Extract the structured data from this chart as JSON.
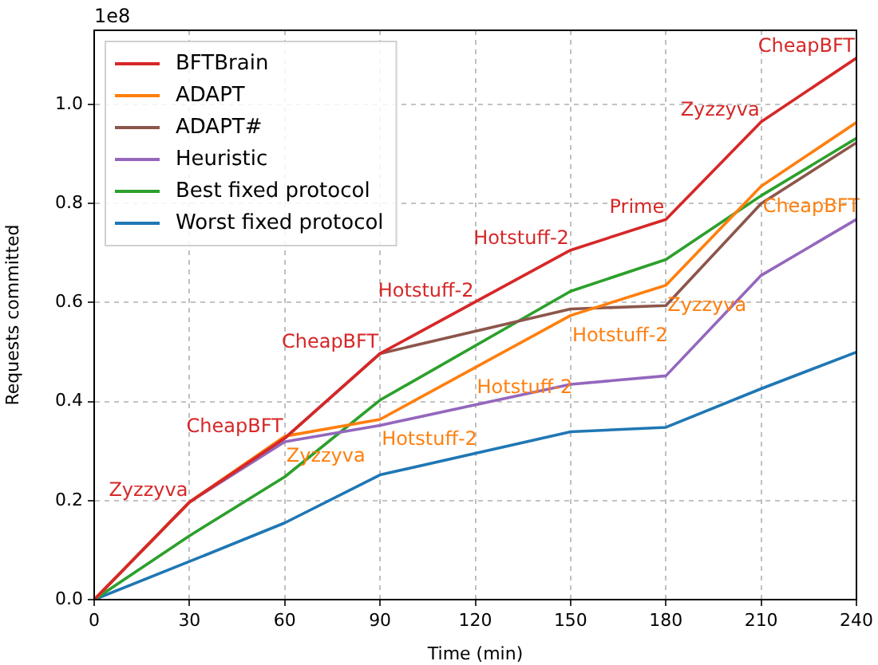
{
  "chart_data": {
    "type": "line",
    "xlabel": "Time (min)",
    "ylabel": "Requests committed",
    "x": [
      0,
      30,
      60,
      90,
      150,
      180,
      210,
      240
    ],
    "series": [
      {
        "name": "BFTBrain",
        "color": "#d62728",
        "values": [
          0,
          0.197,
          0.326,
          0.497,
          0.706,
          0.768,
          0.965,
          1.094
        ]
      },
      {
        "name": "ADAPT",
        "color": "#ff7f0e",
        "values": [
          0,
          0.197,
          0.33,
          0.364,
          0.574,
          0.635,
          0.835,
          0.964
        ]
      },
      {
        "name": "ADAPT#",
        "color": "#8c564b",
        "values": [
          0,
          0.197,
          0.326,
          0.497,
          0.587,
          0.594,
          0.8,
          0.923
        ]
      },
      {
        "name": "Heuristic",
        "color": "#9467bd",
        "values": [
          0,
          0.197,
          0.319,
          0.352,
          0.435,
          0.452,
          0.655,
          0.768
        ]
      },
      {
        "name": "Best fixed protocol",
        "color": "#2ca02c",
        "values": [
          0,
          0.129,
          0.248,
          0.403,
          0.623,
          0.687,
          0.816,
          0.932
        ]
      },
      {
        "name": "Worst fixed protocol",
        "color": "#1f77b4",
        "values": [
          0,
          0.077,
          0.155,
          0.252,
          0.339,
          0.348,
          0.426,
          0.5
        ]
      }
    ],
    "xlim": [
      0,
      240
    ],
    "xticks": [
      0,
      30,
      60,
      90,
      120,
      150,
      180,
      210,
      240
    ],
    "ylim": [
      0,
      1.15
    ],
    "yticks": [
      {
        "value": 0,
        "label": "0.0"
      },
      {
        "value": 0.2,
        "label": "0.2"
      },
      {
        "value": 0.4,
        "label": "0.4"
      },
      {
        "value": 0.6,
        "label": "0.6"
      },
      {
        "value": 0.8,
        "label": "0.8"
      },
      {
        "value": 1,
        "label": "1.0"
      }
    ],
    "grid": true,
    "legend": "top left",
    "line_style": "solid",
    "marker": "none",
    "annotations": [
      "1e8",
      {
        "text": "Zyzzyva",
        "x": 30,
        "y": 0.197
      },
      {
        "text": "CheapBFT",
        "x": 60,
        "y": 0.326
      },
      {
        "text": "CheapBFT",
        "x": 90,
        "y": 0.497
      },
      {
        "text": "Hotstuff-2",
        "x": 120,
        "y": 0.6
      },
      {
        "text": "Hotstuff-2",
        "x": 150,
        "y": 0.706
      },
      {
        "text": "Prime",
        "x": 180,
        "y": 0.768
      },
      {
        "text": "Zyzzyva",
        "x": 210,
        "y": 0.965
      },
      {
        "text": "CheapBFT",
        "x": 240,
        "y": 1.094
      },
      {
        "text": "Zyzzyva",
        "x": 60,
        "y": 0.33
      },
      {
        "text": "Hotstuff-2",
        "x": 90,
        "y": 0.364
      },
      {
        "text": "Hotstuff-2",
        "x": 120,
        "y": 0.469
      },
      {
        "text": "Hotstuff-2",
        "x": 150,
        "y": 0.574
      },
      {
        "text": "Zyzzyva",
        "x": 180,
        "y": 0.635
      },
      {
        "text": "CheapBFT",
        "x": 210,
        "y": 0.835
      }
    ]
  }
}
